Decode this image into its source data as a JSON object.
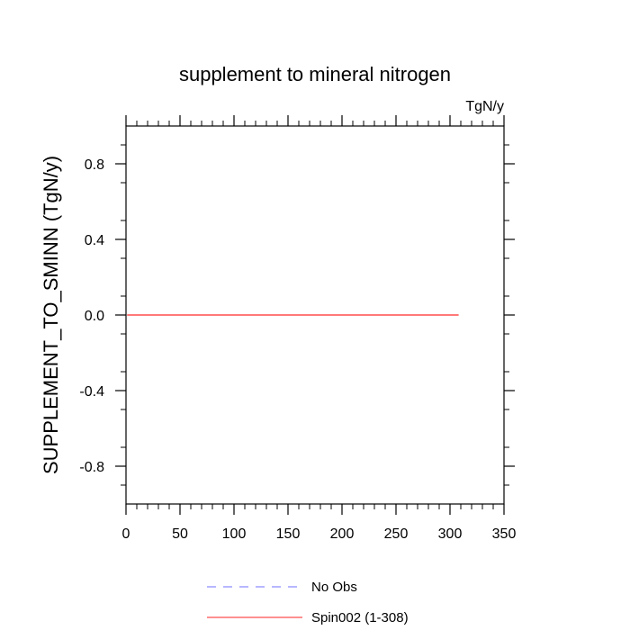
{
  "chart_data": {
    "type": "line",
    "title": "supplement to mineral nitrogen",
    "units": "TgN/y",
    "xlabel": "",
    "ylabel": "SUPPLEMENT_TO_SMINN  (TgN/y)",
    "xlim": [
      0,
      350
    ],
    "ylim": [
      -1.0,
      1.0
    ],
    "x_ticks": [
      0,
      50,
      100,
      150,
      200,
      250,
      300,
      350
    ],
    "x_tick_labels": [
      "0",
      "50",
      "100",
      "150",
      "200",
      "250",
      "300",
      "350"
    ],
    "y_ticks": [
      -0.8,
      -0.4,
      0.0,
      0.4,
      0.8
    ],
    "y_tick_labels": [
      "-0.8",
      "-0.4",
      "0.0",
      "0.4",
      "0.8"
    ],
    "grid": false,
    "legend_position": "bottom-center",
    "series": [
      {
        "name": "No Obs",
        "color": "#8c8cff",
        "dash": "dashed",
        "x": [],
        "y": []
      },
      {
        "name": "Spin002 (1-308)",
        "color": "#ff4d4d",
        "dash": "solid",
        "x": [
          1,
          308
        ],
        "y": [
          0.0,
          0.0
        ]
      }
    ]
  }
}
